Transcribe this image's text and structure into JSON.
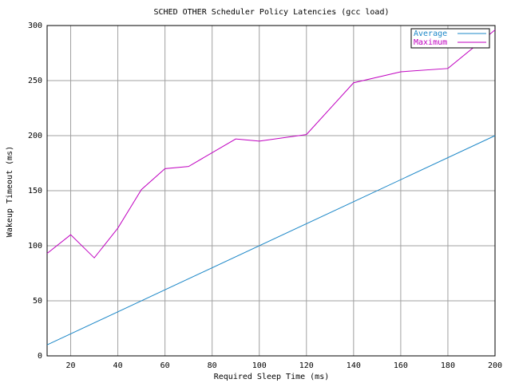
{
  "chart_data": {
    "type": "line",
    "title": "SCHED OTHER Scheduler Policy Latencies (gcc load)",
    "x_label": "Required Sleep Time (ms)",
    "y_label": "Wakeup Timeout (ms)",
    "xlim": [
      10,
      200
    ],
    "xticks": [
      20,
      40,
      60,
      80,
      100,
      120,
      140,
      160,
      180,
      200
    ],
    "ylim": [
      0,
      300
    ],
    "yticks": [
      0,
      50,
      100,
      150,
      200,
      250,
      300
    ],
    "grid": true,
    "legend": "top-right",
    "series": [
      {
        "name": "Average",
        "color": "#1e88c8",
        "x": [
          10,
          200
        ],
        "values": [
          10,
          200
        ]
      },
      {
        "name": "Maximum",
        "color": "#c000c0",
        "x": [
          10,
          20,
          30,
          40,
          50,
          60,
          70,
          90,
          100,
          120,
          140,
          160,
          180,
          200
        ],
        "values": [
          93,
          110,
          89,
          116,
          151,
          170,
          172,
          197,
          195,
          201,
          248,
          258,
          261,
          296
        ]
      }
    ]
  }
}
